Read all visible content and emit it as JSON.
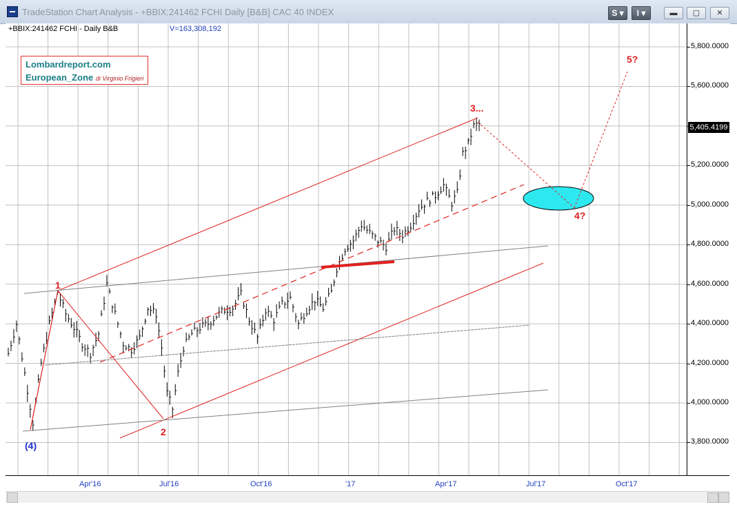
{
  "window": {
    "title": "TradeStation Chart Analysis - +BBIX:241462 FCHI Daily [B&B] CAC 40 INDEX",
    "buttons": {
      "s_label": "S",
      "i_label": "I"
    }
  },
  "header": {
    "symbol": "+BBIX:241462 FCHI - Daily  B&B",
    "volume": "V=163,308,192"
  },
  "legend": {
    "line1": "Lombardreport.com",
    "line2": "European_Zone",
    "author": "di Virginio Frigieri"
  },
  "y_axis": {
    "labels": [
      "5,800.0000",
      "5,600.0000",
      "5,400.0000",
      "5,200.0000",
      "5,000.0000",
      "4,800.0000",
      "4,600.0000",
      "4,400.0000",
      "4,200.0000",
      "4,000.0000",
      "3,800.0000"
    ],
    "last_price": "5,405.4199"
  },
  "x_axis": {
    "labels": [
      "Apr'16",
      "Jul'16",
      "Oct'16",
      "'17",
      "Apr'17",
      "Jul'17",
      "Oct'17"
    ]
  },
  "waves": {
    "w1": "1",
    "w2": "2",
    "w3": "3...",
    "w4": "4?",
    "w5": "5?",
    "w4_big": "(4)"
  },
  "colors": {
    "bars": "#000000",
    "channel": "#e02020",
    "grey_lines": "#808080",
    "target_zone": "#2ee8f0",
    "wave_label": "#e02020",
    "wave4_big": "#1f2fcf"
  },
  "chart_data": {
    "type": "bar",
    "title": "",
    "series_name": "",
    "ylim": [
      3700,
      5950
    ],
    "x_ticks": [
      "Apr'16",
      "Jul'16",
      "Oct'16",
      "'17",
      "Apr'17",
      "Jul'17",
      "Oct'17"
    ],
    "close_path": [
      [
        0,
        4250
      ],
      [
        3,
        4400
      ],
      [
        6,
        4150
      ],
      [
        9,
        3900
      ],
      [
        12,
        4200
      ],
      [
        15,
        4400
      ],
      [
        18,
        4560
      ],
      [
        21,
        4450
      ],
      [
        24,
        4380
      ],
      [
        27,
        4300
      ],
      [
        30,
        4250
      ],
      [
        33,
        4350
      ],
      [
        36,
        4600
      ],
      [
        39,
        4450
      ],
      [
        42,
        4300
      ],
      [
        45,
        4270
      ],
      [
        48,
        4330
      ],
      [
        51,
        4480
      ],
      [
        54,
        4450
      ],
      [
        56,
        4280
      ],
      [
        58,
        4050
      ],
      [
        60,
        3970
      ],
      [
        62,
        4150
      ],
      [
        64,
        4280
      ],
      [
        67,
        4350
      ],
      [
        70,
        4380
      ],
      [
        73,
        4400
      ],
      [
        76,
        4440
      ],
      [
        79,
        4470
      ],
      [
        82,
        4480
      ],
      [
        85,
        4550
      ],
      [
        88,
        4420
      ],
      [
        91,
        4330
      ],
      [
        94,
        4470
      ],
      [
        97,
        4420
      ],
      [
        100,
        4500
      ],
      [
        103,
        4530
      ],
      [
        106,
        4400
      ],
      [
        109,
        4470
      ],
      [
        112,
        4520
      ],
      [
        115,
        4480
      ],
      [
        118,
        4560
      ],
      [
        120,
        4680
      ],
      [
        123,
        4780
      ],
      [
        126,
        4820
      ],
      [
        129,
        4900
      ],
      [
        132,
        4860
      ],
      [
        135,
        4820
      ],
      [
        138,
        4790
      ],
      [
        141,
        4880
      ],
      [
        144,
        4850
      ],
      [
        147,
        4900
      ],
      [
        150,
        4980
      ],
      [
        153,
        5020
      ],
      [
        156,
        5050
      ],
      [
        159,
        5100
      ],
      [
        162,
        5010
      ],
      [
        164,
        5060
      ],
      [
        166,
        5260
      ],
      [
        168,
        5310
      ],
      [
        170,
        5400
      ],
      [
        172,
        5410
      ]
    ]
  }
}
